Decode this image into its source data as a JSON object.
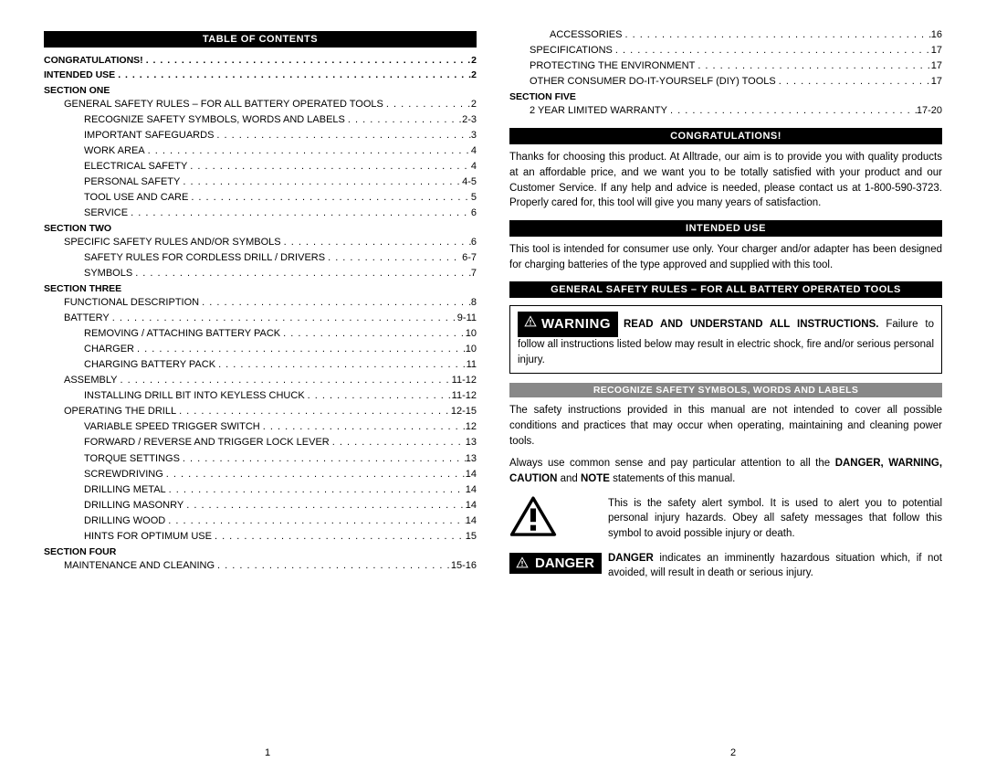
{
  "left": {
    "header": "TABLE OF CONTENTS",
    "toc": [
      {
        "label": "CONGRATULATIONS!",
        "page": "2",
        "indent": 0,
        "dots": true
      },
      {
        "label": "INTENDED USE",
        "page": "2",
        "indent": 0,
        "dots": true
      },
      {
        "label": "SECTION ONE",
        "indent": 0,
        "head": true
      },
      {
        "label": "GENERAL SAFETY RULES – FOR ALL BATTERY OPERATED TOOLS",
        "page": "2",
        "indent": 1,
        "dots": true
      },
      {
        "label": "RECOGNIZE SAFETY SYMBOLS, WORDS AND LABELS",
        "page": "2-3",
        "indent": 2,
        "dots": true
      },
      {
        "label": "IMPORTANT SAFEGUARDS",
        "page": "3",
        "indent": 2,
        "dots": true
      },
      {
        "label": "WORK AREA",
        "page": "4",
        "indent": 2,
        "dots": true
      },
      {
        "label": "ELECTRICAL SAFETY",
        "page": "4",
        "indent": 2,
        "dots": true
      },
      {
        "label": "PERSONAL SAFETY",
        "page": "4-5",
        "indent": 2,
        "dots": true
      },
      {
        "label": "TOOL USE AND CARE",
        "page": "5",
        "indent": 2,
        "dots": true
      },
      {
        "label": "SERVICE",
        "page": "6",
        "indent": 2,
        "dots": true
      },
      {
        "label": "SECTION TWO",
        "indent": 0,
        "head": true
      },
      {
        "label": "SPECIFIC SAFETY RULES AND/OR SYMBOLS",
        "page": "6",
        "indent": 1,
        "dots": true
      },
      {
        "label": "SAFETY RULES FOR CORDLESS DRILL / DRIVERS",
        "page": "6-7",
        "indent": 2,
        "dots": true
      },
      {
        "label": "SYMBOLS",
        "page": "7",
        "indent": 2,
        "dots": true
      },
      {
        "label": "SECTION THREE",
        "indent": 0,
        "head": true
      },
      {
        "label": "FUNCTIONAL DESCRIPTION",
        "page": "8",
        "indent": 1,
        "dots": true
      },
      {
        "label": "BATTERY",
        "page": "9-11",
        "indent": 1,
        "dots": true
      },
      {
        "label": "REMOVING / ATTACHING BATTERY PACK",
        "page": "10",
        "indent": 2,
        "dots": true
      },
      {
        "label": "CHARGER",
        "page": "10",
        "indent": 2,
        "dots": true
      },
      {
        "label": "CHARGING BATTERY PACK",
        "page": "11",
        "indent": 2,
        "dots": true
      },
      {
        "label": "ASSEMBLY",
        "page": "11-12",
        "indent": 1,
        "dots": true
      },
      {
        "label": "INSTALLING DRILL BIT INTO KEYLESS CHUCK",
        "page": "11-12",
        "indent": 2,
        "dots": true
      },
      {
        "label": "OPERATING THE DRILL",
        "page": "12-15",
        "indent": 1,
        "dots": true
      },
      {
        "label": "VARIABLE SPEED TRIGGER SWITCH",
        "page": "12",
        "indent": 2,
        "dots": true
      },
      {
        "label": "FORWARD / REVERSE AND TRIGGER LOCK LEVER",
        "page": "13",
        "indent": 2,
        "dots": true
      },
      {
        "label": "TORQUE SETTINGS",
        "page": "13",
        "indent": 2,
        "dots": true
      },
      {
        "label": "SCREWDRIVING",
        "page": "14",
        "indent": 2,
        "dots": true
      },
      {
        "label": "DRILLING METAL",
        "page": "14",
        "indent": 2,
        "dots": true
      },
      {
        "label": "DRILLING MASONRY",
        "page": "14",
        "indent": 2,
        "dots": true
      },
      {
        "label": "DRILLING WOOD",
        "page": "14",
        "indent": 2,
        "dots": true
      },
      {
        "label": "HINTS FOR OPTIMUM USE",
        "page": "15",
        "indent": 2,
        "dots": true
      },
      {
        "label": "SECTION FOUR",
        "indent": 0,
        "head": true
      },
      {
        "label": "MAINTENANCE AND CLEANING",
        "page": "15-16",
        "indent": 1,
        "dots": true
      }
    ],
    "page_num": "1"
  },
  "right": {
    "toc": [
      {
        "label": "ACCESSORIES",
        "page": "16",
        "indent": 2,
        "dots": true
      },
      {
        "label": "SPECIFICATIONS",
        "page": "17",
        "indent": 1,
        "dots": true
      },
      {
        "label": "PROTECTING THE ENVIRONMENT",
        "page": "17",
        "indent": 1,
        "dots": true
      },
      {
        "label": "OTHER CONSUMER DO-IT-YOURSELF (DIY) TOOLS",
        "page": "17",
        "indent": 1,
        "dots": true
      },
      {
        "label": "SECTION FIVE",
        "indent": 0,
        "head": true
      },
      {
        "label": "2 YEAR LIMITED WARRANTY",
        "page": "17-20",
        "indent": 1,
        "dots": true
      }
    ],
    "h_congrats": "CONGRATULATIONS!",
    "p_congrats": "Thanks for choosing this product. At Alltrade, our aim is to provide you with quality products at an affordable price, and we want you to be totally satisfied with your product and our Customer Service. If any help and advice is needed, please contact us at 1-800-590-3723. Properly cared for, this tool will give you many years of satisfaction.",
    "h_intended": "INTENDED USE",
    "p_intended": "This tool is intended for consumer use only. Your charger and/or adapter has been designed for charging batteries of the type approved and supplied with this tool.",
    "h_safety": "GENERAL SAFETY RULES – FOR ALL BATTERY OPERATED TOOLS",
    "warning_label": "WARNING",
    "warning_bold": "READ AND UNDERSTAND ALL INSTRUCTIONS.",
    "warning_rest": " Failure to follow all instructions listed below may result in electric shock, fire and/or serious personal injury.",
    "h_recognize": "RECOGNIZE SAFETY SYMBOLS, WORDS AND LABELS",
    "p_recognize": "The safety instructions provided in this manual are not intended to cover all possible conditions and practices that may occur when operating, maintaining and cleaning power tools.",
    "p_common1": "Always use common sense and pay particular attention to all the ",
    "p_common_bold": "DANGER, WARNING, CAUTION",
    "p_common2": " and ",
    "p_common_bold2": "NOTE",
    "p_common3": " statements of this manual.",
    "alert_text": "This is the safety alert symbol. It is used to alert you to potential personal injury hazards. Obey all safety messages that follow this symbol to avoid possible injury or death.",
    "danger_label": "DANGER",
    "danger_bold": "DANGER",
    "danger_rest": " indicates an imminently hazardous situation which, if not avoided, will result in death or serious injury.",
    "page_num": "2"
  }
}
